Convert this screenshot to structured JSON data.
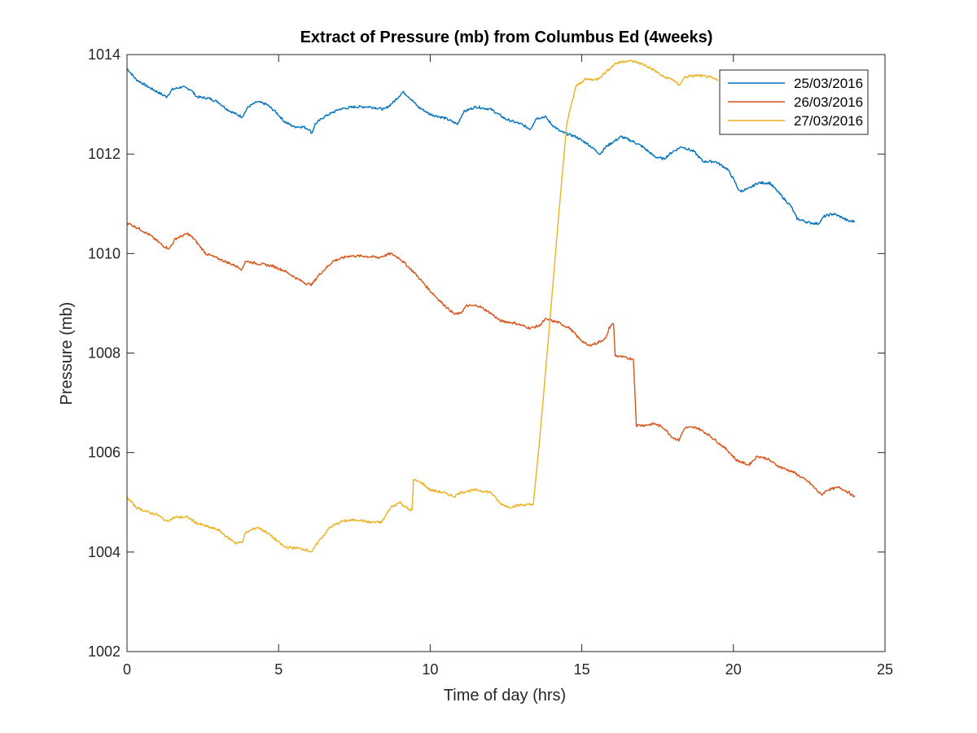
{
  "chart_data": {
    "type": "line",
    "title": "Extract of Pressure (mb) from Columbus Ed (4weeks)",
    "xlabel": "Time of day (hrs)",
    "ylabel": "Pressure (mb)",
    "xlim": [
      0,
      25
    ],
    "ylim": [
      1002,
      1014
    ],
    "xticks": [
      0,
      5,
      10,
      15,
      20,
      25
    ],
    "yticks": [
      1002,
      1004,
      1006,
      1008,
      1010,
      1012,
      1014
    ],
    "legend_position": "top-right",
    "grid": false,
    "series": [
      {
        "name": "25/03/2016",
        "color": "#0072BD",
        "points": [
          [
            0,
            1013.72
          ],
          [
            0.3,
            1013.5
          ],
          [
            0.7,
            1013.35
          ],
          [
            1.0,
            1013.25
          ],
          [
            1.3,
            1013.15
          ],
          [
            1.5,
            1013.3
          ],
          [
            1.8,
            1013.35
          ],
          [
            2.1,
            1013.3
          ],
          [
            2.3,
            1013.15
          ],
          [
            2.7,
            1013.12
          ],
          [
            3.0,
            1013.05
          ],
          [
            3.3,
            1012.9
          ],
          [
            3.6,
            1012.8
          ],
          [
            3.8,
            1012.75
          ],
          [
            4.0,
            1012.95
          ],
          [
            4.3,
            1013.05
          ],
          [
            4.6,
            1013.0
          ],
          [
            4.9,
            1012.85
          ],
          [
            5.2,
            1012.65
          ],
          [
            5.5,
            1012.55
          ],
          [
            5.8,
            1012.55
          ],
          [
            6.0,
            1012.5
          ],
          [
            6.1,
            1012.42
          ],
          [
            6.2,
            1012.6
          ],
          [
            6.5,
            1012.75
          ],
          [
            7.0,
            1012.9
          ],
          [
            7.5,
            1012.95
          ],
          [
            8.0,
            1012.95
          ],
          [
            8.5,
            1012.9
          ],
          [
            8.8,
            1013.05
          ],
          [
            9.1,
            1013.25
          ],
          [
            9.3,
            1013.15
          ],
          [
            9.6,
            1012.95
          ],
          [
            10.0,
            1012.8
          ],
          [
            10.5,
            1012.72
          ],
          [
            10.9,
            1012.6
          ],
          [
            11.1,
            1012.85
          ],
          [
            11.5,
            1012.95
          ],
          [
            12.0,
            1012.9
          ],
          [
            12.5,
            1012.7
          ],
          [
            13.0,
            1012.6
          ],
          [
            13.3,
            1012.5
          ],
          [
            13.5,
            1012.72
          ],
          [
            13.8,
            1012.75
          ],
          [
            14.0,
            1012.6
          ],
          [
            14.3,
            1012.45
          ],
          [
            14.8,
            1012.35
          ],
          [
            15.2,
            1012.2
          ],
          [
            15.6,
            1012.0
          ],
          [
            15.8,
            1012.15
          ],
          [
            16.3,
            1012.35
          ],
          [
            16.7,
            1012.25
          ],
          [
            17.0,
            1012.15
          ],
          [
            17.4,
            1011.95
          ],
          [
            17.7,
            1011.9
          ],
          [
            18.0,
            1012.05
          ],
          [
            18.3,
            1012.15
          ],
          [
            18.7,
            1012.05
          ],
          [
            19.0,
            1011.85
          ],
          [
            19.4,
            1011.85
          ],
          [
            19.8,
            1011.7
          ],
          [
            20.0,
            1011.5
          ],
          [
            20.2,
            1011.25
          ],
          [
            20.5,
            1011.3
          ],
          [
            20.8,
            1011.42
          ],
          [
            21.2,
            1011.42
          ],
          [
            21.6,
            1011.15
          ],
          [
            21.9,
            1010.95
          ],
          [
            22.1,
            1010.7
          ],
          [
            22.5,
            1010.62
          ],
          [
            22.8,
            1010.6
          ],
          [
            23.0,
            1010.75
          ],
          [
            23.3,
            1010.8
          ],
          [
            23.6,
            1010.72
          ],
          [
            23.8,
            1010.65
          ],
          [
            24.0,
            1010.65
          ]
        ]
      },
      {
        "name": "26/03/2016",
        "color": "#D95319",
        "points": [
          [
            0,
            1010.62
          ],
          [
            0.4,
            1010.5
          ],
          [
            0.8,
            1010.35
          ],
          [
            1.2,
            1010.15
          ],
          [
            1.4,
            1010.1
          ],
          [
            1.6,
            1010.3
          ],
          [
            2.0,
            1010.4
          ],
          [
            2.2,
            1010.3
          ],
          [
            2.6,
            1010.0
          ],
          [
            3.0,
            1009.9
          ],
          [
            3.4,
            1009.8
          ],
          [
            3.7,
            1009.72
          ],
          [
            3.8,
            1009.68
          ],
          [
            3.9,
            1009.85
          ],
          [
            4.3,
            1009.8
          ],
          [
            4.8,
            1009.75
          ],
          [
            5.2,
            1009.65
          ],
          [
            5.6,
            1009.5
          ],
          [
            5.9,
            1009.4
          ],
          [
            6.1,
            1009.38
          ],
          [
            6.3,
            1009.55
          ],
          [
            6.8,
            1009.85
          ],
          [
            7.3,
            1009.95
          ],
          [
            7.8,
            1009.95
          ],
          [
            8.3,
            1009.92
          ],
          [
            8.7,
            1010.0
          ],
          [
            9.0,
            1009.9
          ],
          [
            9.5,
            1009.6
          ],
          [
            10.0,
            1009.25
          ],
          [
            10.4,
            1009.0
          ],
          [
            10.8,
            1008.78
          ],
          [
            11.0,
            1008.8
          ],
          [
            11.2,
            1008.95
          ],
          [
            11.6,
            1008.95
          ],
          [
            12.0,
            1008.8
          ],
          [
            12.3,
            1008.65
          ],
          [
            12.8,
            1008.6
          ],
          [
            13.3,
            1008.5
          ],
          [
            13.6,
            1008.55
          ],
          [
            13.8,
            1008.68
          ],
          [
            14.2,
            1008.62
          ],
          [
            14.6,
            1008.5
          ],
          [
            14.9,
            1008.3
          ],
          [
            15.2,
            1008.15
          ],
          [
            15.5,
            1008.2
          ],
          [
            15.8,
            1008.3
          ],
          [
            15.9,
            1008.5
          ],
          [
            16.0,
            1008.58
          ],
          [
            16.05,
            1008.58
          ],
          [
            16.1,
            1007.95
          ],
          [
            16.5,
            1007.9
          ],
          [
            16.7,
            1007.88
          ],
          [
            16.8,
            1006.55
          ],
          [
            17.1,
            1006.55
          ],
          [
            17.4,
            1006.58
          ],
          [
            17.7,
            1006.5
          ],
          [
            18.0,
            1006.3
          ],
          [
            18.2,
            1006.25
          ],
          [
            18.4,
            1006.5
          ],
          [
            18.8,
            1006.5
          ],
          [
            19.2,
            1006.35
          ],
          [
            19.5,
            1006.2
          ],
          [
            19.8,
            1006.05
          ],
          [
            20.1,
            1005.85
          ],
          [
            20.5,
            1005.75
          ],
          [
            20.8,
            1005.93
          ],
          [
            21.1,
            1005.88
          ],
          [
            21.5,
            1005.72
          ],
          [
            22.0,
            1005.6
          ],
          [
            22.5,
            1005.4
          ],
          [
            22.9,
            1005.15
          ],
          [
            23.1,
            1005.25
          ],
          [
            23.5,
            1005.3
          ],
          [
            23.8,
            1005.2
          ],
          [
            24.0,
            1005.1
          ]
        ]
      },
      {
        "name": "27/03/2016",
        "color": "#EDB120",
        "points": [
          [
            0,
            1005.1
          ],
          [
            0.3,
            1004.9
          ],
          [
            0.7,
            1004.8
          ],
          [
            1.0,
            1004.75
          ],
          [
            1.3,
            1004.62
          ],
          [
            1.6,
            1004.7
          ],
          [
            2.0,
            1004.7
          ],
          [
            2.3,
            1004.58
          ],
          [
            2.7,
            1004.5
          ],
          [
            3.0,
            1004.45
          ],
          [
            3.3,
            1004.3
          ],
          [
            3.6,
            1004.18
          ],
          [
            3.8,
            1004.2
          ],
          [
            3.9,
            1004.38
          ],
          [
            4.3,
            1004.5
          ],
          [
            4.6,
            1004.4
          ],
          [
            4.9,
            1004.25
          ],
          [
            5.2,
            1004.1
          ],
          [
            5.6,
            1004.08
          ],
          [
            5.9,
            1004.05
          ],
          [
            6.1,
            1004.0
          ],
          [
            6.3,
            1004.2
          ],
          [
            6.7,
            1004.5
          ],
          [
            7.1,
            1004.62
          ],
          [
            7.6,
            1004.65
          ],
          [
            8.0,
            1004.6
          ],
          [
            8.4,
            1004.6
          ],
          [
            8.7,
            1004.9
          ],
          [
            9.0,
            1005.0
          ],
          [
            9.3,
            1004.85
          ],
          [
            9.4,
            1004.85
          ],
          [
            9.45,
            1005.45
          ],
          [
            9.7,
            1005.4
          ],
          [
            10.0,
            1005.25
          ],
          [
            10.4,
            1005.2
          ],
          [
            10.8,
            1005.12
          ],
          [
            11.0,
            1005.2
          ],
          [
            11.5,
            1005.25
          ],
          [
            12.0,
            1005.2
          ],
          [
            12.3,
            1004.98
          ],
          [
            12.6,
            1004.9
          ],
          [
            13.0,
            1004.95
          ],
          [
            13.4,
            1004.95
          ],
          [
            13.6,
            1006.2
          ],
          [
            13.9,
            1008.3
          ],
          [
            14.2,
            1010.5
          ],
          [
            14.5,
            1012.6
          ],
          [
            14.8,
            1013.35
          ],
          [
            15.1,
            1013.5
          ],
          [
            15.5,
            1013.5
          ],
          [
            15.8,
            1013.65
          ],
          [
            16.1,
            1013.82
          ],
          [
            16.5,
            1013.88
          ],
          [
            16.8,
            1013.85
          ],
          [
            17.1,
            1013.78
          ],
          [
            17.4,
            1013.68
          ],
          [
            17.7,
            1013.55
          ],
          [
            18.0,
            1013.5
          ],
          [
            18.2,
            1013.38
          ],
          [
            18.4,
            1013.55
          ],
          [
            18.8,
            1013.58
          ],
          [
            19.2,
            1013.55
          ],
          [
            19.5,
            1013.48
          ]
        ]
      }
    ]
  }
}
